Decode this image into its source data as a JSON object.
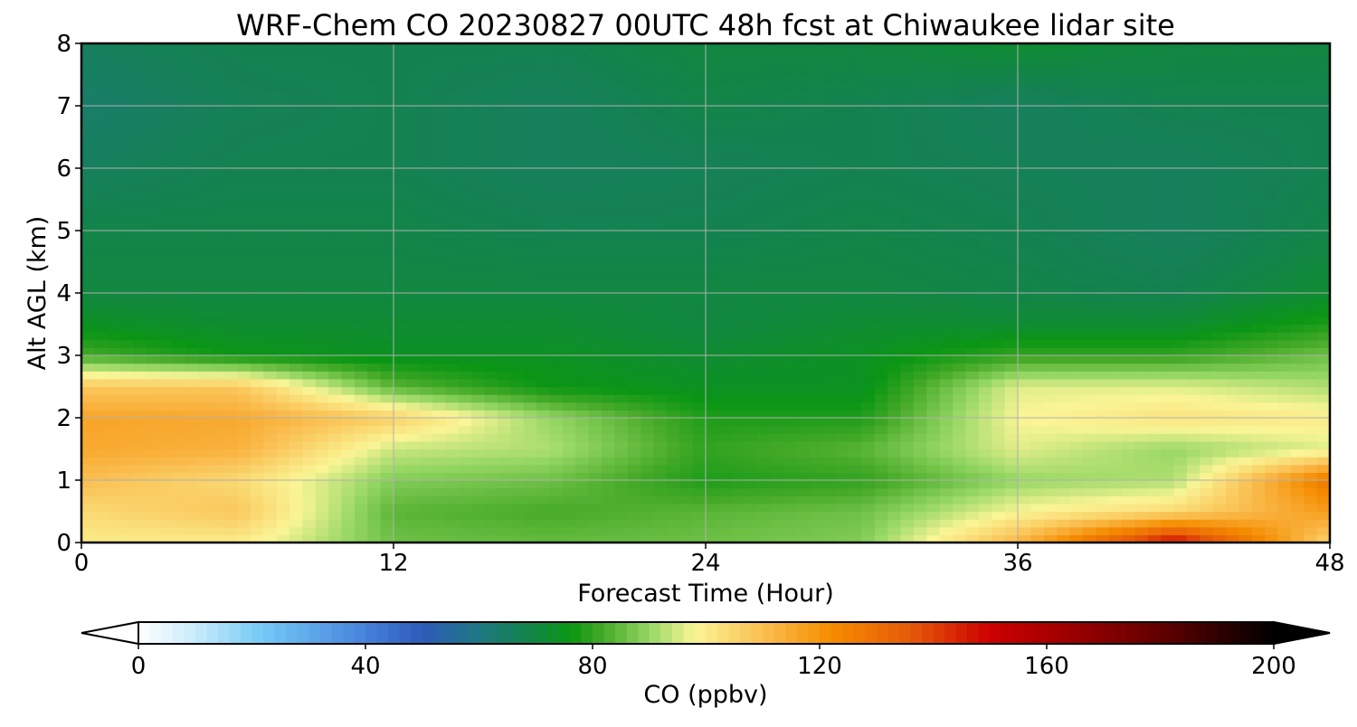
{
  "chart_data": {
    "type": "heatmap",
    "title": "WRF-Chem CO  20230827 00UTC 48h fcst at Chiwaukee lidar site",
    "xlabel": "Forecast Time (Hour)",
    "ylabel": "Alt AGL (km)",
    "xlim": [
      0,
      48
    ],
    "ylim": [
      0,
      8
    ],
    "x_ticks": [
      "0",
      "12",
      "24",
      "36",
      "48"
    ],
    "y_ticks": [
      "0",
      "1",
      "2",
      "3",
      "4",
      "5",
      "6",
      "7",
      "8"
    ],
    "grid": true,
    "x": [
      0,
      6,
      12,
      18,
      24,
      30,
      36,
      42,
      48
    ],
    "y": [
      0,
      0.5,
      1,
      1.5,
      2,
      2.5,
      3,
      3.5,
      4,
      5,
      6,
      7,
      8
    ],
    "z": [
      [
        100,
        100,
        86,
        85,
        86,
        88,
        112,
        150,
        104
      ],
      [
        104,
        108,
        84,
        82,
        84,
        86,
        98,
        104,
        118
      ],
      [
        110,
        104,
        88,
        86,
        78,
        80,
        90,
        92,
        128
      ],
      [
        115,
        113,
        94,
        92,
        80,
        84,
        96,
        90,
        96
      ],
      [
        116,
        115,
        106,
        90,
        78,
        78,
        98,
        102,
        100
      ],
      [
        108,
        108,
        84,
        76,
        74,
        74,
        96,
        96,
        92
      ],
      [
        82,
        76,
        74,
        74,
        72,
        74,
        80,
        80,
        86
      ],
      [
        74,
        72,
        72,
        72,
        70,
        72,
        72,
        72,
        78
      ],
      [
        70,
        70,
        70,
        70,
        70,
        70,
        69,
        68,
        72
      ],
      [
        69,
        69,
        69,
        68,
        68,
        69,
        68,
        66,
        69
      ],
      [
        66,
        68,
        68,
        66,
        67,
        68,
        67,
        66,
        68
      ],
      [
        64,
        67,
        68,
        66,
        69,
        68,
        66,
        68,
        68
      ],
      [
        66,
        68,
        68,
        68,
        70,
        70,
        72,
        70,
        70
      ]
    ],
    "colorbar": {
      "label": "CO  (ppbv)",
      "min": 0,
      "max": 200,
      "ticks": [
        "0",
        "40",
        "80",
        "120",
        "160",
        "200"
      ],
      "extend": "both"
    }
  }
}
